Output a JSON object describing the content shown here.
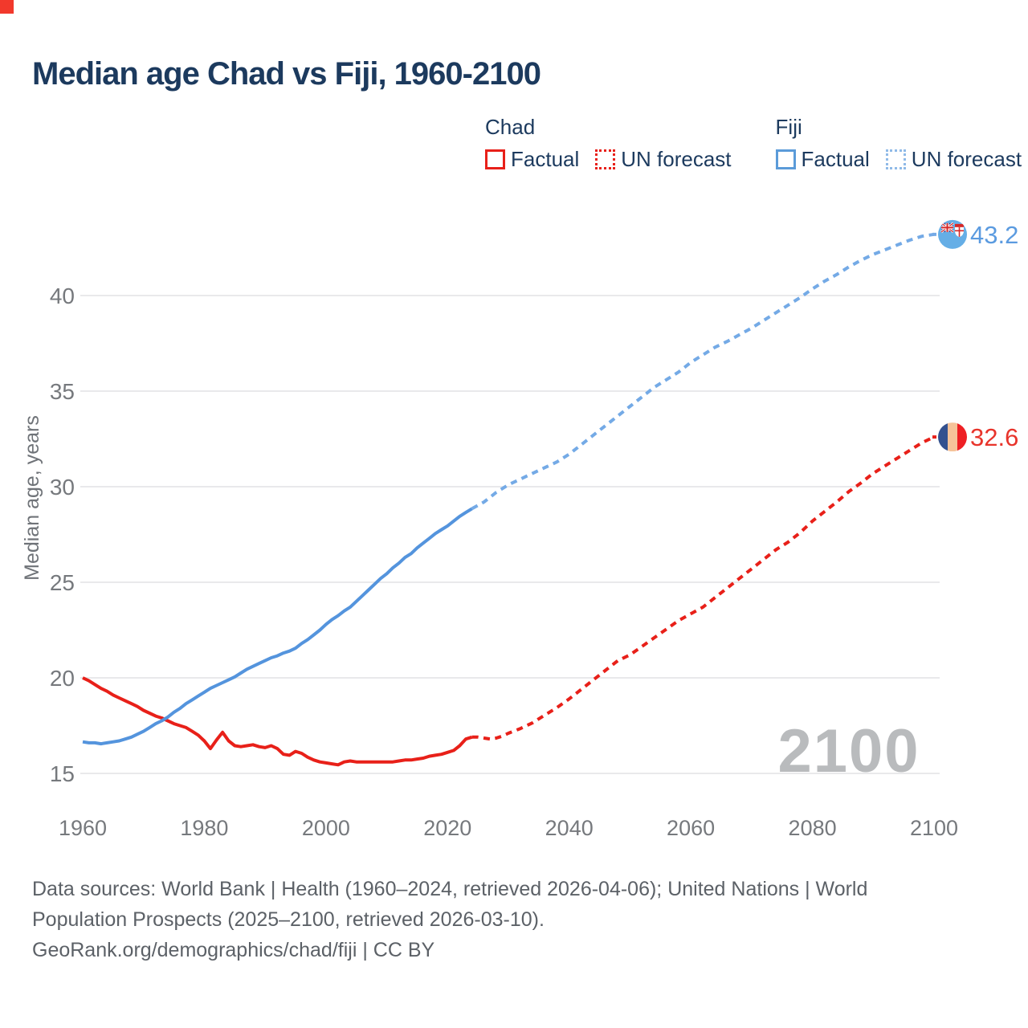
{
  "page": {
    "background": "#ffffff",
    "accent_red": "#e82019",
    "accent_blue": "#5494dd"
  },
  "legend": {
    "groups": [
      {
        "label": "Chad",
        "items": [
          {
            "label": "Factual",
            "style": "solid",
            "color": "#e82019"
          },
          {
            "label": "UN forecast",
            "style": "dotted",
            "color": "#e82019"
          }
        ]
      },
      {
        "label": "Fiji",
        "items": [
          {
            "label": "Factual",
            "style": "solid",
            "color": "#5b9bd9"
          },
          {
            "label": "UN forecast",
            "style": "dotted",
            "color": "#8fbae8"
          }
        ]
      }
    ]
  },
  "chart_data": {
    "type": "line",
    "title": "Median age Chad vs Fiji, 1960-2100",
    "xlabel": "",
    "ylabel": "Median age, years",
    "xlim": [
      1960,
      2100
    ],
    "ylim": [
      15,
      40
    ],
    "xticks": [
      1960,
      1980,
      2000,
      2020,
      2040,
      2060,
      2080,
      2100
    ],
    "yticks": [
      15,
      20,
      25,
      30,
      35,
      40
    ],
    "grid": "horizontal-only",
    "legend_position": "top-right",
    "watermark": "2100",
    "colors": {
      "grid": "#e9e9eb",
      "tick_text": "#76797d",
      "axis_label": "#6f7378",
      "watermark": "#b9bbbd",
      "chad": "#e82019",
      "chad_forecast": "#e82019",
      "fiji": "#5494dd",
      "fiji_forecast": "#74aae6",
      "chad_end_label": "#e8342b",
      "fiji_end_label": "#5b9be0"
    },
    "series": [
      {
        "name": "Chad Factual",
        "style": "solid",
        "color": "#e82019",
        "width": 4,
        "points": [
          [
            1960,
            20.0
          ],
          [
            1961,
            19.85
          ],
          [
            1962,
            19.65
          ],
          [
            1963,
            19.45
          ],
          [
            1964,
            19.3
          ],
          [
            1965,
            19.1
          ],
          [
            1966,
            18.95
          ],
          [
            1967,
            18.8
          ],
          [
            1968,
            18.65
          ],
          [
            1969,
            18.5
          ],
          [
            1970,
            18.3
          ],
          [
            1971,
            18.15
          ],
          [
            1972,
            18.0
          ],
          [
            1973,
            17.9
          ],
          [
            1974,
            17.75
          ],
          [
            1975,
            17.6
          ],
          [
            1976,
            17.5
          ],
          [
            1977,
            17.4
          ],
          [
            1978,
            17.2
          ],
          [
            1979,
            17.0
          ],
          [
            1980,
            16.7
          ],
          [
            1981,
            16.3
          ],
          [
            1982,
            16.75
          ],
          [
            1983,
            17.15
          ],
          [
            1984,
            16.7
          ],
          [
            1985,
            16.45
          ],
          [
            1986,
            16.4
          ],
          [
            1987,
            16.45
          ],
          [
            1988,
            16.5
          ],
          [
            1989,
            16.4
          ],
          [
            1990,
            16.35
          ],
          [
            1991,
            16.45
          ],
          [
            1992,
            16.3
          ],
          [
            1993,
            16.0
          ],
          [
            1994,
            15.95
          ],
          [
            1995,
            16.15
          ],
          [
            1996,
            16.05
          ],
          [
            1997,
            15.85
          ],
          [
            1998,
            15.7
          ],
          [
            1999,
            15.6
          ],
          [
            2000,
            15.55
          ],
          [
            2001,
            15.5
          ],
          [
            2002,
            15.45
          ],
          [
            2003,
            15.6
          ],
          [
            2004,
            15.65
          ],
          [
            2005,
            15.6
          ],
          [
            2006,
            15.6
          ],
          [
            2007,
            15.6
          ],
          [
            2008,
            15.6
          ],
          [
            2009,
            15.6
          ],
          [
            2010,
            15.6
          ],
          [
            2011,
            15.6
          ],
          [
            2012,
            15.65
          ],
          [
            2013,
            15.7
          ],
          [
            2014,
            15.7
          ],
          [
            2015,
            15.75
          ],
          [
            2016,
            15.8
          ],
          [
            2017,
            15.9
          ],
          [
            2018,
            15.95
          ],
          [
            2019,
            16.0
          ],
          [
            2020,
            16.1
          ],
          [
            2021,
            16.2
          ],
          [
            2022,
            16.45
          ],
          [
            2023,
            16.8
          ],
          [
            2024,
            16.9
          ]
        ]
      },
      {
        "name": "Chad UN forecast",
        "style": "dashed",
        "color": "#e82019",
        "width": 4,
        "flag": "chad",
        "end_label": "32.6",
        "end_label_color": "#e8342b",
        "points": [
          [
            2024,
            16.9
          ],
          [
            2025,
            16.9
          ],
          [
            2026,
            16.85
          ],
          [
            2027,
            16.8
          ],
          [
            2028,
            16.85
          ],
          [
            2029,
            16.95
          ],
          [
            2030,
            17.1
          ],
          [
            2032,
            17.35
          ],
          [
            2034,
            17.65
          ],
          [
            2036,
            18.05
          ],
          [
            2038,
            18.45
          ],
          [
            2040,
            18.9
          ],
          [
            2042,
            19.4
          ],
          [
            2044,
            19.9
          ],
          [
            2046,
            20.4
          ],
          [
            2048,
            20.9
          ],
          [
            2050,
            21.2
          ],
          [
            2052,
            21.65
          ],
          [
            2054,
            22.1
          ],
          [
            2056,
            22.55
          ],
          [
            2058,
            23.0
          ],
          [
            2060,
            23.35
          ],
          [
            2062,
            23.7
          ],
          [
            2064,
            24.2
          ],
          [
            2066,
            24.7
          ],
          [
            2068,
            25.2
          ],
          [
            2070,
            25.7
          ],
          [
            2072,
            26.2
          ],
          [
            2074,
            26.7
          ],
          [
            2076,
            27.1
          ],
          [
            2078,
            27.6
          ],
          [
            2080,
            28.2
          ],
          [
            2082,
            28.7
          ],
          [
            2084,
            29.2
          ],
          [
            2086,
            29.75
          ],
          [
            2088,
            30.2
          ],
          [
            2090,
            30.7
          ],
          [
            2092,
            31.1
          ],
          [
            2094,
            31.5
          ],
          [
            2096,
            31.9
          ],
          [
            2098,
            32.3
          ],
          [
            2100,
            32.6
          ]
        ]
      },
      {
        "name": "Fiji Factual",
        "style": "solid",
        "color": "#5494dd",
        "width": 4,
        "points": [
          [
            1960,
            16.65
          ],
          [
            1961,
            16.6
          ],
          [
            1962,
            16.6
          ],
          [
            1963,
            16.55
          ],
          [
            1964,
            16.6
          ],
          [
            1965,
            16.65
          ],
          [
            1966,
            16.7
          ],
          [
            1967,
            16.8
          ],
          [
            1968,
            16.9
          ],
          [
            1969,
            17.05
          ],
          [
            1970,
            17.2
          ],
          [
            1971,
            17.4
          ],
          [
            1972,
            17.6
          ],
          [
            1973,
            17.75
          ],
          [
            1974,
            17.95
          ],
          [
            1975,
            18.2
          ],
          [
            1976,
            18.4
          ],
          [
            1977,
            18.65
          ],
          [
            1978,
            18.85
          ],
          [
            1979,
            19.05
          ],
          [
            1980,
            19.25
          ],
          [
            1981,
            19.45
          ],
          [
            1982,
            19.6
          ],
          [
            1983,
            19.75
          ],
          [
            1984,
            19.9
          ],
          [
            1985,
            20.05
          ],
          [
            1986,
            20.25
          ],
          [
            1987,
            20.45
          ],
          [
            1988,
            20.6
          ],
          [
            1989,
            20.75
          ],
          [
            1990,
            20.9
          ],
          [
            1991,
            21.05
          ],
          [
            1992,
            21.15
          ],
          [
            1993,
            21.3
          ],
          [
            1994,
            21.4
          ],
          [
            1995,
            21.55
          ],
          [
            1996,
            21.8
          ],
          [
            1997,
            22.0
          ],
          [
            1998,
            22.25
          ],
          [
            1999,
            22.5
          ],
          [
            2000,
            22.8
          ],
          [
            2001,
            23.05
          ],
          [
            2002,
            23.25
          ],
          [
            2003,
            23.5
          ],
          [
            2004,
            23.7
          ],
          [
            2005,
            24.0
          ],
          [
            2006,
            24.3
          ],
          [
            2007,
            24.6
          ],
          [
            2008,
            24.9
          ],
          [
            2009,
            25.2
          ],
          [
            2010,
            25.45
          ],
          [
            2011,
            25.75
          ],
          [
            2012,
            26.0
          ],
          [
            2013,
            26.3
          ],
          [
            2014,
            26.5
          ],
          [
            2015,
            26.8
          ],
          [
            2016,
            27.05
          ],
          [
            2017,
            27.3
          ],
          [
            2018,
            27.55
          ],
          [
            2019,
            27.75
          ],
          [
            2020,
            27.95
          ],
          [
            2021,
            28.2
          ],
          [
            2022,
            28.45
          ],
          [
            2023,
            28.65
          ],
          [
            2024,
            28.85
          ]
        ]
      },
      {
        "name": "Fiji UN forecast",
        "style": "dashed",
        "color": "#74aae6",
        "width": 4,
        "flag": "fiji",
        "end_label": "43.2",
        "end_label_color": "#5b9be0",
        "points": [
          [
            2024,
            28.85
          ],
          [
            2026,
            29.2
          ],
          [
            2028,
            29.7
          ],
          [
            2030,
            30.1
          ],
          [
            2032,
            30.4
          ],
          [
            2034,
            30.7
          ],
          [
            2036,
            31.0
          ],
          [
            2038,
            31.3
          ],
          [
            2040,
            31.7
          ],
          [
            2042,
            32.2
          ],
          [
            2044,
            32.7
          ],
          [
            2046,
            33.2
          ],
          [
            2048,
            33.7
          ],
          [
            2050,
            34.2
          ],
          [
            2052,
            34.7
          ],
          [
            2054,
            35.2
          ],
          [
            2056,
            35.6
          ],
          [
            2058,
            36.0
          ],
          [
            2060,
            36.5
          ],
          [
            2062,
            36.9
          ],
          [
            2064,
            37.3
          ],
          [
            2066,
            37.6
          ],
          [
            2068,
            37.95
          ],
          [
            2070,
            38.3
          ],
          [
            2072,
            38.7
          ],
          [
            2074,
            39.1
          ],
          [
            2076,
            39.5
          ],
          [
            2078,
            39.9
          ],
          [
            2080,
            40.35
          ],
          [
            2082,
            40.75
          ],
          [
            2084,
            41.1
          ],
          [
            2086,
            41.5
          ],
          [
            2088,
            41.85
          ],
          [
            2090,
            42.15
          ],
          [
            2092,
            42.4
          ],
          [
            2094,
            42.65
          ],
          [
            2096,
            42.9
          ],
          [
            2098,
            43.1
          ],
          [
            2100,
            43.2
          ]
        ]
      }
    ]
  },
  "footer": {
    "para1": "Data sources: World Bank | Health (1960–2024, retrieved 2026-04-06); United Nations | World Population Prospects (2025–2100, retrieved 2026-03-10).",
    "para2": "GeoRank.org/demographics/chad/fiji | CC BY"
  }
}
